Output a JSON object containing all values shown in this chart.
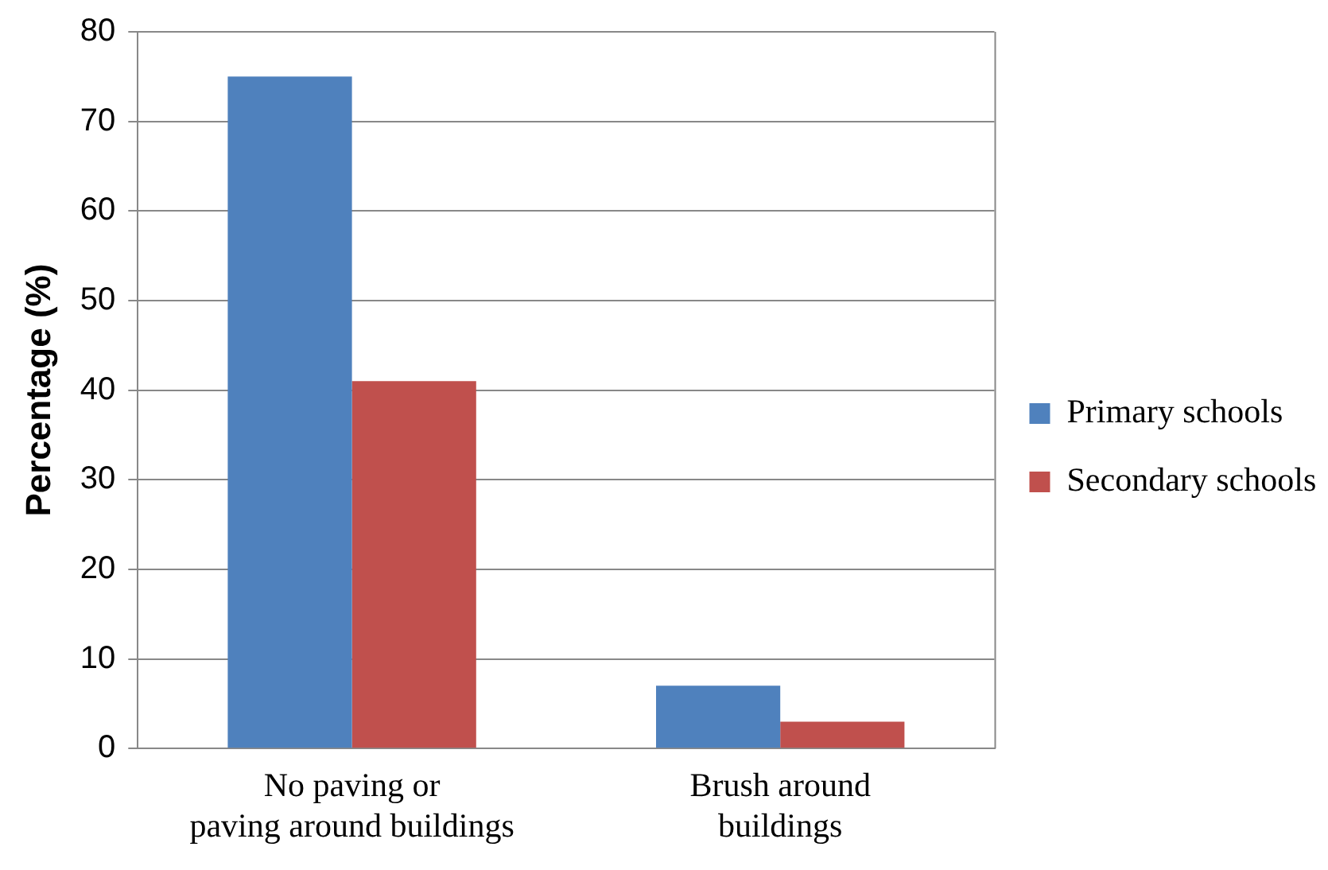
{
  "chart_data": {
    "type": "bar",
    "ylabel": "Percentage (%)",
    "categories": [
      "No paving or paving around buildings",
      "Brush around buildings"
    ],
    "series": [
      {
        "name": "Primary schools",
        "color": "#4f81bd",
        "values": [
          75,
          7
        ]
      },
      {
        "name": "Secondary schools",
        "color": "#c0504d",
        "values": [
          41,
          3
        ]
      }
    ],
    "ylim": [
      0,
      80
    ],
    "yticks": [
      0,
      10,
      20,
      30,
      40,
      50,
      60,
      70,
      80
    ],
    "grid": "y",
    "legend": "right"
  }
}
